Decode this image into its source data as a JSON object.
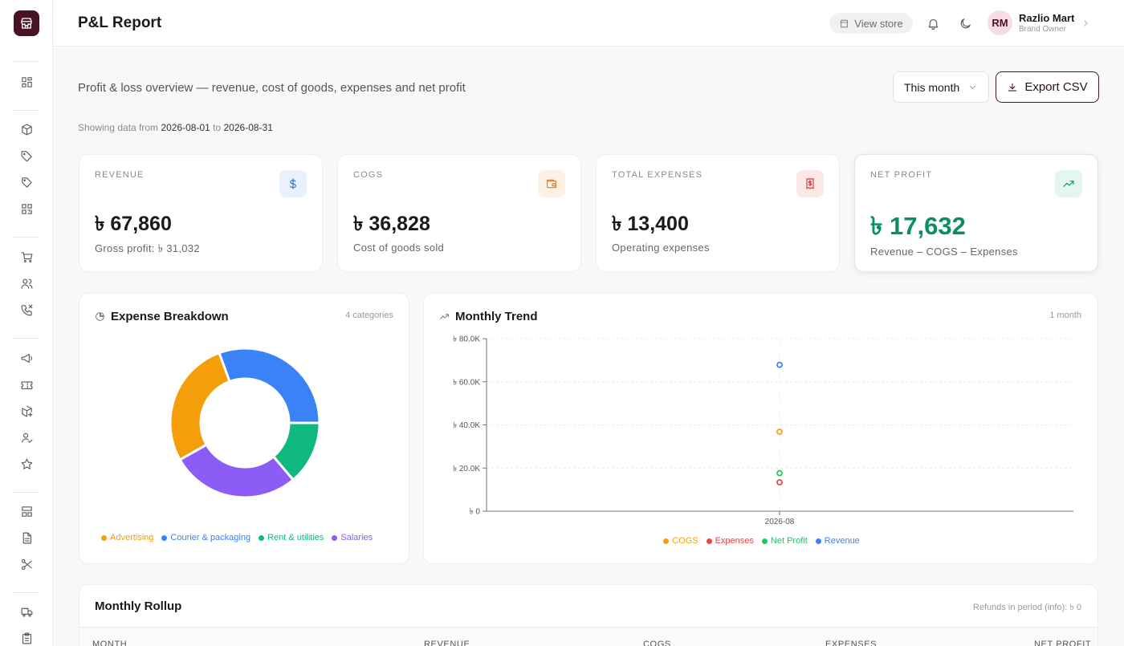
{
  "header": {
    "title": "P&L Report",
    "view_store": "View store",
    "user_initials": "RM",
    "user_name": "Razlio Mart",
    "user_role": "Brand Owner"
  },
  "toolbar": {
    "subtitle": "Profit & loss overview — revenue, cost of goods, expenses and net profit",
    "range_value": "This month",
    "export_label": "Export CSV",
    "showing_prefix": "Showing data from",
    "date_from": "2026-08-01",
    "showing_mid": "to",
    "date_to": "2026-08-31"
  },
  "kpis": [
    {
      "label": "REVENUE",
      "value": "৳ 67,860",
      "sub": "Gross profit: ৳ 31,032",
      "icon": "dollar-icon",
      "icon_color": "#2f6fd6",
      "icon_bg": "#e9f1fd"
    },
    {
      "label": "COGS",
      "value": "৳ 36,828",
      "sub": "Cost of goods sold",
      "icon": "wallet-icon",
      "icon_color": "#e0781e",
      "icon_bg": "#fdf1e4"
    },
    {
      "label": "TOTAL EXPENSES",
      "value": "৳ 13,400",
      "sub": "Operating expenses",
      "icon": "receipt-icon",
      "icon_color": "#d23a3a",
      "icon_bg": "#fde8e8"
    },
    {
      "label": "NET PROFIT",
      "value": "৳ 17,632",
      "sub": "Revenue – COGS – Expenses",
      "icon": "trending-up-icon",
      "icon_color": "#12996c",
      "icon_bg": "#e4f7ef"
    }
  ],
  "expense_panel": {
    "title": "Expense Breakdown",
    "meta": "4 categories"
  },
  "trend_panel": {
    "title": "Monthly Trend",
    "meta": "1 month"
  },
  "rollup": {
    "title": "Monthly Rollup",
    "meta": "Refunds in period (info): ৳ 0",
    "columns": [
      "MONTH",
      "REVENUE",
      "COGS",
      "EXPENSES",
      "NET PROFIT"
    ]
  },
  "chart_data": [
    {
      "type": "pie",
      "categories": [
        "Advertising",
        "Courier & packaging",
        "Rent & utilities",
        "Salaries"
      ],
      "values": [
        3700,
        4100,
        1850,
        3750
      ],
      "colors": [
        "#f59e0b",
        "#3b82f6",
        "#10b981",
        "#8b5cf6"
      ],
      "donut": true,
      "legend": "bottom"
    },
    {
      "type": "scatter",
      "x": [
        "2026-08"
      ],
      "series": [
        {
          "name": "COGS",
          "color": "#f59e0b",
          "values": [
            36828
          ]
        },
        {
          "name": "Expenses",
          "color": "#ef4444",
          "values": [
            13400
          ]
        },
        {
          "name": "Net Profit",
          "color": "#22c55e",
          "values": [
            17632
          ]
        },
        {
          "name": "Revenue",
          "color": "#3b82f6",
          "values": [
            67860
          ]
        }
      ],
      "ylim": [
        0,
        80000
      ],
      "yticks": [
        "৳ 0",
        "৳ 20.0K",
        "৳ 40.0K",
        "৳ 60.0K",
        "৳ 80.0K"
      ],
      "ytick_values": [
        0,
        20000,
        40000,
        60000,
        80000
      ],
      "grid": true,
      "legend": "bottom"
    }
  ]
}
